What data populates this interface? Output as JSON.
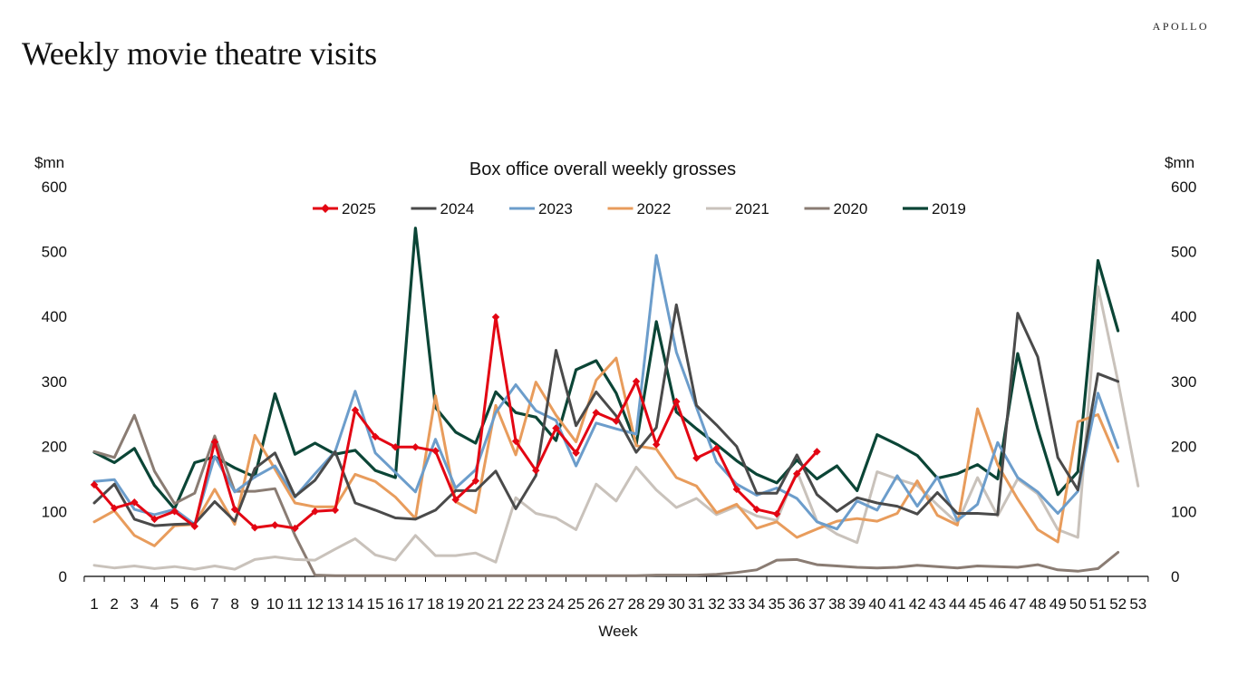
{
  "brand": "APOLLO",
  "page_title": "Weekly movie theatre visits",
  "chart_data": {
    "type": "line",
    "title": "Box office overall weekly grosses",
    "xlabel": "Week",
    "ylabel_left": "$mn",
    "ylabel_right": "$mn",
    "ylim": [
      0,
      600
    ],
    "yticks": [
      0,
      100,
      200,
      300,
      400,
      500,
      600
    ],
    "x": [
      1,
      2,
      3,
      4,
      5,
      6,
      7,
      8,
      9,
      10,
      11,
      12,
      13,
      14,
      15,
      16,
      17,
      18,
      19,
      20,
      21,
      22,
      23,
      24,
      25,
      26,
      27,
      28,
      29,
      30,
      31,
      32,
      33,
      34,
      35,
      36,
      37,
      38,
      39,
      40,
      41,
      42,
      43,
      44,
      45,
      46,
      47,
      48,
      49,
      50,
      51,
      52,
      53
    ],
    "series": [
      {
        "name": "2019",
        "color": "#0b4536",
        "width": 3.2,
        "marker": false,
        "values": [
          191,
          175,
          197,
          140,
          104,
          175,
          184,
          167,
          153,
          281,
          188,
          205,
          188,
          194,
          163,
          152,
          536,
          260,
          222,
          205,
          284,
          252,
          245,
          209,
          318,
          332,
          282,
          203,
          392,
          253,
          227,
          203,
          178,
          157,
          144,
          179,
          150,
          170,
          132,
          218,
          203,
          186,
          151,
          158,
          172,
          150,
          343,
          227,
          126,
          161,
          486,
          378,
          null
        ]
      },
      {
        "name": "2020",
        "color": "#8a7c73",
        "width": 3,
        "marker": false,
        "values": [
          192,
          183,
          248,
          162,
          112,
          128,
          216,
          131,
          131,
          135,
          63,
          2,
          1,
          1,
          1,
          1,
          1,
          1,
          1,
          1,
          1,
          1,
          1,
          1,
          1,
          1,
          1,
          1,
          2,
          2,
          2,
          3,
          6,
          10,
          25,
          26,
          18,
          16,
          14,
          13,
          14,
          17,
          15,
          13,
          16,
          15,
          14,
          18,
          10,
          8,
          12,
          37,
          null
        ]
      },
      {
        "name": "2021",
        "color": "#c9c2bb",
        "width": 3,
        "marker": false,
        "values": [
          17,
          13,
          16,
          12,
          15,
          11,
          16,
          11,
          26,
          30,
          26,
          25,
          42,
          58,
          33,
          25,
          63,
          32,
          32,
          36,
          22,
          121,
          97,
          90,
          72,
          142,
          116,
          168,
          133,
          106,
          120,
          95,
          108,
          93,
          86,
          162,
          85,
          65,
          52,
          161,
          150,
          140,
          110,
          82,
          152,
          93,
          150,
          127,
          72,
          60,
          446,
          300,
          139
        ]
      },
      {
        "name": "2022",
        "color": "#e89c5c",
        "width": 3,
        "marker": false,
        "values": [
          84,
          101,
          63,
          47,
          78,
          80,
          134,
          80,
          217,
          165,
          113,
          107,
          107,
          157,
          146,
          122,
          89,
          278,
          115,
          98,
          263,
          187,
          299,
          248,
          207,
          302,
          336,
          201,
          196,
          152,
          139,
          98,
          111,
          74,
          84,
          60,
          73,
          85,
          89,
          85,
          97,
          147,
          94,
          79,
          258,
          172,
          119,
          72,
          53,
          238,
          249,
          177,
          null
        ]
      },
      {
        "name": "2023",
        "color": "#6c9dcb",
        "width": 3,
        "marker": false,
        "values": [
          146,
          149,
          103,
          95,
          103,
          80,
          185,
          130,
          153,
          170,
          122,
          158,
          192,
          285,
          190,
          160,
          130,
          211,
          136,
          164,
          252,
          295,
          255,
          240,
          170,
          236,
          227,
          219,
          494,
          345,
          260,
          176,
          142,
          125,
          136,
          120,
          84,
          73,
          116,
          102,
          155,
          108,
          153,
          86,
          111,
          206,
          152,
          130,
          97,
          131,
          282,
          198,
          null
        ]
      },
      {
        "name": "2024",
        "color": "#4a4a4a",
        "width": 3,
        "marker": false,
        "values": [
          113,
          142,
          88,
          78,
          80,
          81,
          115,
          85,
          166,
          190,
          123,
          148,
          192,
          113,
          102,
          90,
          88,
          102,
          132,
          132,
          162,
          104,
          155,
          348,
          232,
          284,
          247,
          191,
          229,
          418,
          263,
          233,
          200,
          128,
          128,
          187,
          126,
          100,
          121,
          113,
          108,
          96,
          129,
          97,
          97,
          95,
          405,
          338,
          183,
          133,
          312,
          300,
          null
        ]
      },
      {
        "name": "2025",
        "color": "#e30613",
        "width": 3,
        "marker": true,
        "values": [
          141,
          105,
          114,
          88,
          100,
          77,
          207,
          103,
          75,
          79,
          74,
          100,
          102,
          256,
          215,
          199,
          199,
          193,
          118,
          147,
          399,
          208,
          163,
          228,
          190,
          252,
          239,
          300,
          203,
          269,
          182,
          197,
          134,
          103,
          96,
          158,
          192,
          null,
          null,
          null,
          null,
          null,
          null,
          null,
          null,
          null,
          null,
          null,
          null,
          null,
          null,
          null,
          null
        ]
      }
    ],
    "legend_order": [
      "2025",
      "2024",
      "2023",
      "2022",
      "2021",
      "2020",
      "2019"
    ],
    "legend_position": "top-center"
  }
}
